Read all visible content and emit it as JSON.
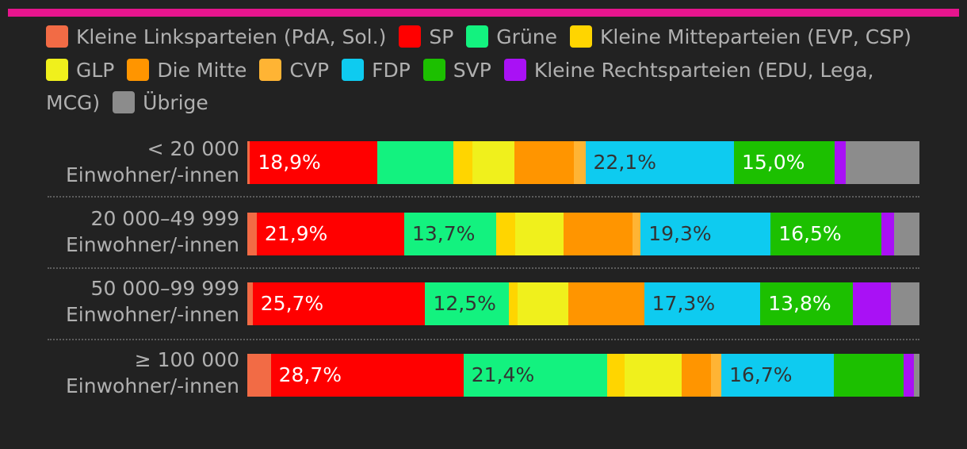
{
  "chart_data": {
    "type": "bar",
    "orientation": "horizontal",
    "stacked": true,
    "normalized": true,
    "legend_position": "top",
    "grid": false,
    "series": [
      {
        "name": "Kleine Linksparteien (PdA, Sol.)",
        "color": "#f26b45",
        "values": [
          0.4,
          1.4,
          0.8,
          3.5
        ]
      },
      {
        "name": "SP",
        "color": "#ff0000",
        "values": [
          18.9,
          21.9,
          25.7,
          28.7
        ]
      },
      {
        "name": "Grüne",
        "color": "#13f27f",
        "values": [
          11.4,
          13.7,
          12.5,
          21.4
        ]
      },
      {
        "name": "Kleine Mitteparteien (EVP, CSP)",
        "color": "#ffd500",
        "values": [
          2.8,
          2.8,
          1.2,
          2.6
        ]
      },
      {
        "name": "GLP",
        "color": "#f0f01c",
        "values": [
          6.2,
          7.1,
          7.6,
          8.5
        ]
      },
      {
        "name": "Die Mitte",
        "color": "#ff9500",
        "values": [
          8.9,
          10.3,
          11.3,
          4.3
        ]
      },
      {
        "name": "CVP",
        "color": "#ffb434",
        "values": [
          1.7,
          1.2,
          0.0,
          1.6
        ]
      },
      {
        "name": "FDP",
        "color": "#0ecbf0",
        "values": [
          22.1,
          19.3,
          17.3,
          16.7
        ]
      },
      {
        "name": "SVP",
        "color": "#1cc000",
        "values": [
          15.0,
          16.5,
          13.8,
          10.4
        ]
      },
      {
        "name": "Kleine Rechtsparteien (EDU, Lega, MCG)",
        "color": "#a911f5",
        "values": [
          1.6,
          1.8,
          5.7,
          1.6
        ]
      },
      {
        "name": "Übrige",
        "color": "#8c8c8c",
        "values": [
          11.0,
          3.8,
          4.2,
          0.8
        ]
      }
    ],
    "categories": [
      {
        "line1": "< 20 000",
        "line2": "Einwohner/-innen"
      },
      {
        "line1": "20 000–49 999",
        "line2": "Einwohner/-innen"
      },
      {
        "line1": "50 000–99 999",
        "line2": "Einwohner/-innen"
      },
      {
        "line1": "≥ 100 000",
        "line2": "Einwohner/-innen"
      }
    ],
    "data_labels": [
      [
        {
          "series": 1,
          "text": "18,9%"
        },
        {
          "series": 7,
          "text": "22,1%"
        },
        {
          "series": 8,
          "text": "15,0%"
        }
      ],
      [
        {
          "series": 1,
          "text": "21,9%"
        },
        {
          "series": 2,
          "text": "13,7%"
        },
        {
          "series": 7,
          "text": "19,3%"
        },
        {
          "series": 8,
          "text": "16,5%"
        }
      ],
      [
        {
          "series": 1,
          "text": "25,7%"
        },
        {
          "series": 2,
          "text": "12,5%"
        },
        {
          "series": 7,
          "text": "17,3%"
        },
        {
          "series": 8,
          "text": "13,8%"
        }
      ],
      [
        {
          "series": 1,
          "text": "28,7%"
        },
        {
          "series": 2,
          "text": "21,4%"
        },
        {
          "series": 7,
          "text": "16,7%"
        }
      ]
    ],
    "label_colors": {
      "light": "#ffffff",
      "dark": "#333333"
    }
  },
  "header_accent": "#e6158d"
}
